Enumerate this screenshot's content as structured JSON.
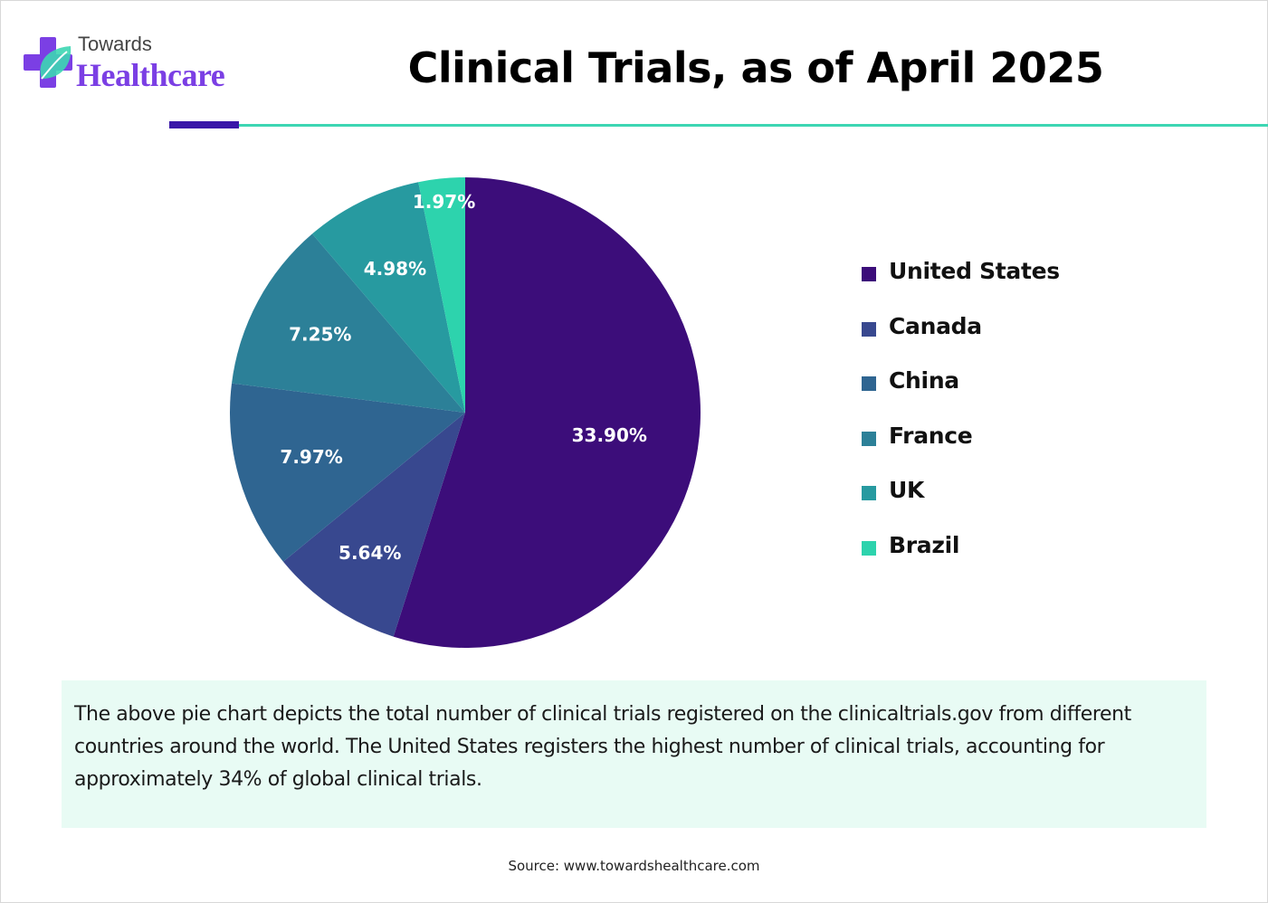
{
  "brand": {
    "line1": "Towards",
    "line2": "Healthcare",
    "colors": {
      "primary": "#7b3fe4",
      "dark": "#3a17a8",
      "accent": "#3dd6b3"
    },
    "icon": "medical-cross-leaf-icon"
  },
  "header": {
    "title": "Clinical Trials, as of April 2025"
  },
  "chart_data": {
    "type": "pie",
    "title": "Clinical Trials, as of April 2025",
    "categories": [
      "United States",
      "Canada",
      "China",
      "France",
      "UK",
      "Brazil"
    ],
    "values": [
      33.9,
      5.64,
      7.97,
      7.25,
      4.98,
      1.97
    ],
    "labels": [
      "33.90%",
      "5.64%",
      "7.97%",
      "7.25%",
      "4.98%",
      "1.97%"
    ],
    "colors": [
      "#3c0d7a",
      "#38488f",
      "#2f6591",
      "#2c8098",
      "#279aa0",
      "#2dd3ad"
    ],
    "legend_position": "right",
    "start": "12 o'clock",
    "direction": "clockwise"
  },
  "legend": {
    "items": [
      {
        "label": "United States",
        "color": "#3c0d7a"
      },
      {
        "label": "Canada",
        "color": "#38488f"
      },
      {
        "label": "China",
        "color": "#2f6591"
      },
      {
        "label": "France",
        "color": "#2c8098"
      },
      {
        "label": "UK",
        "color": "#279aa0"
      },
      {
        "label": "Brazil",
        "color": "#2dd3ad"
      }
    ]
  },
  "description": {
    "text": "The above pie chart depicts the total number of clinical trials registered on the clinicaltrials.gov from different countries around the world. The United States registers the highest number of clinical trials, accounting for approximately 34% of global clinical trials."
  },
  "footer": {
    "source": "Source: www.towardshealthcare.com"
  }
}
